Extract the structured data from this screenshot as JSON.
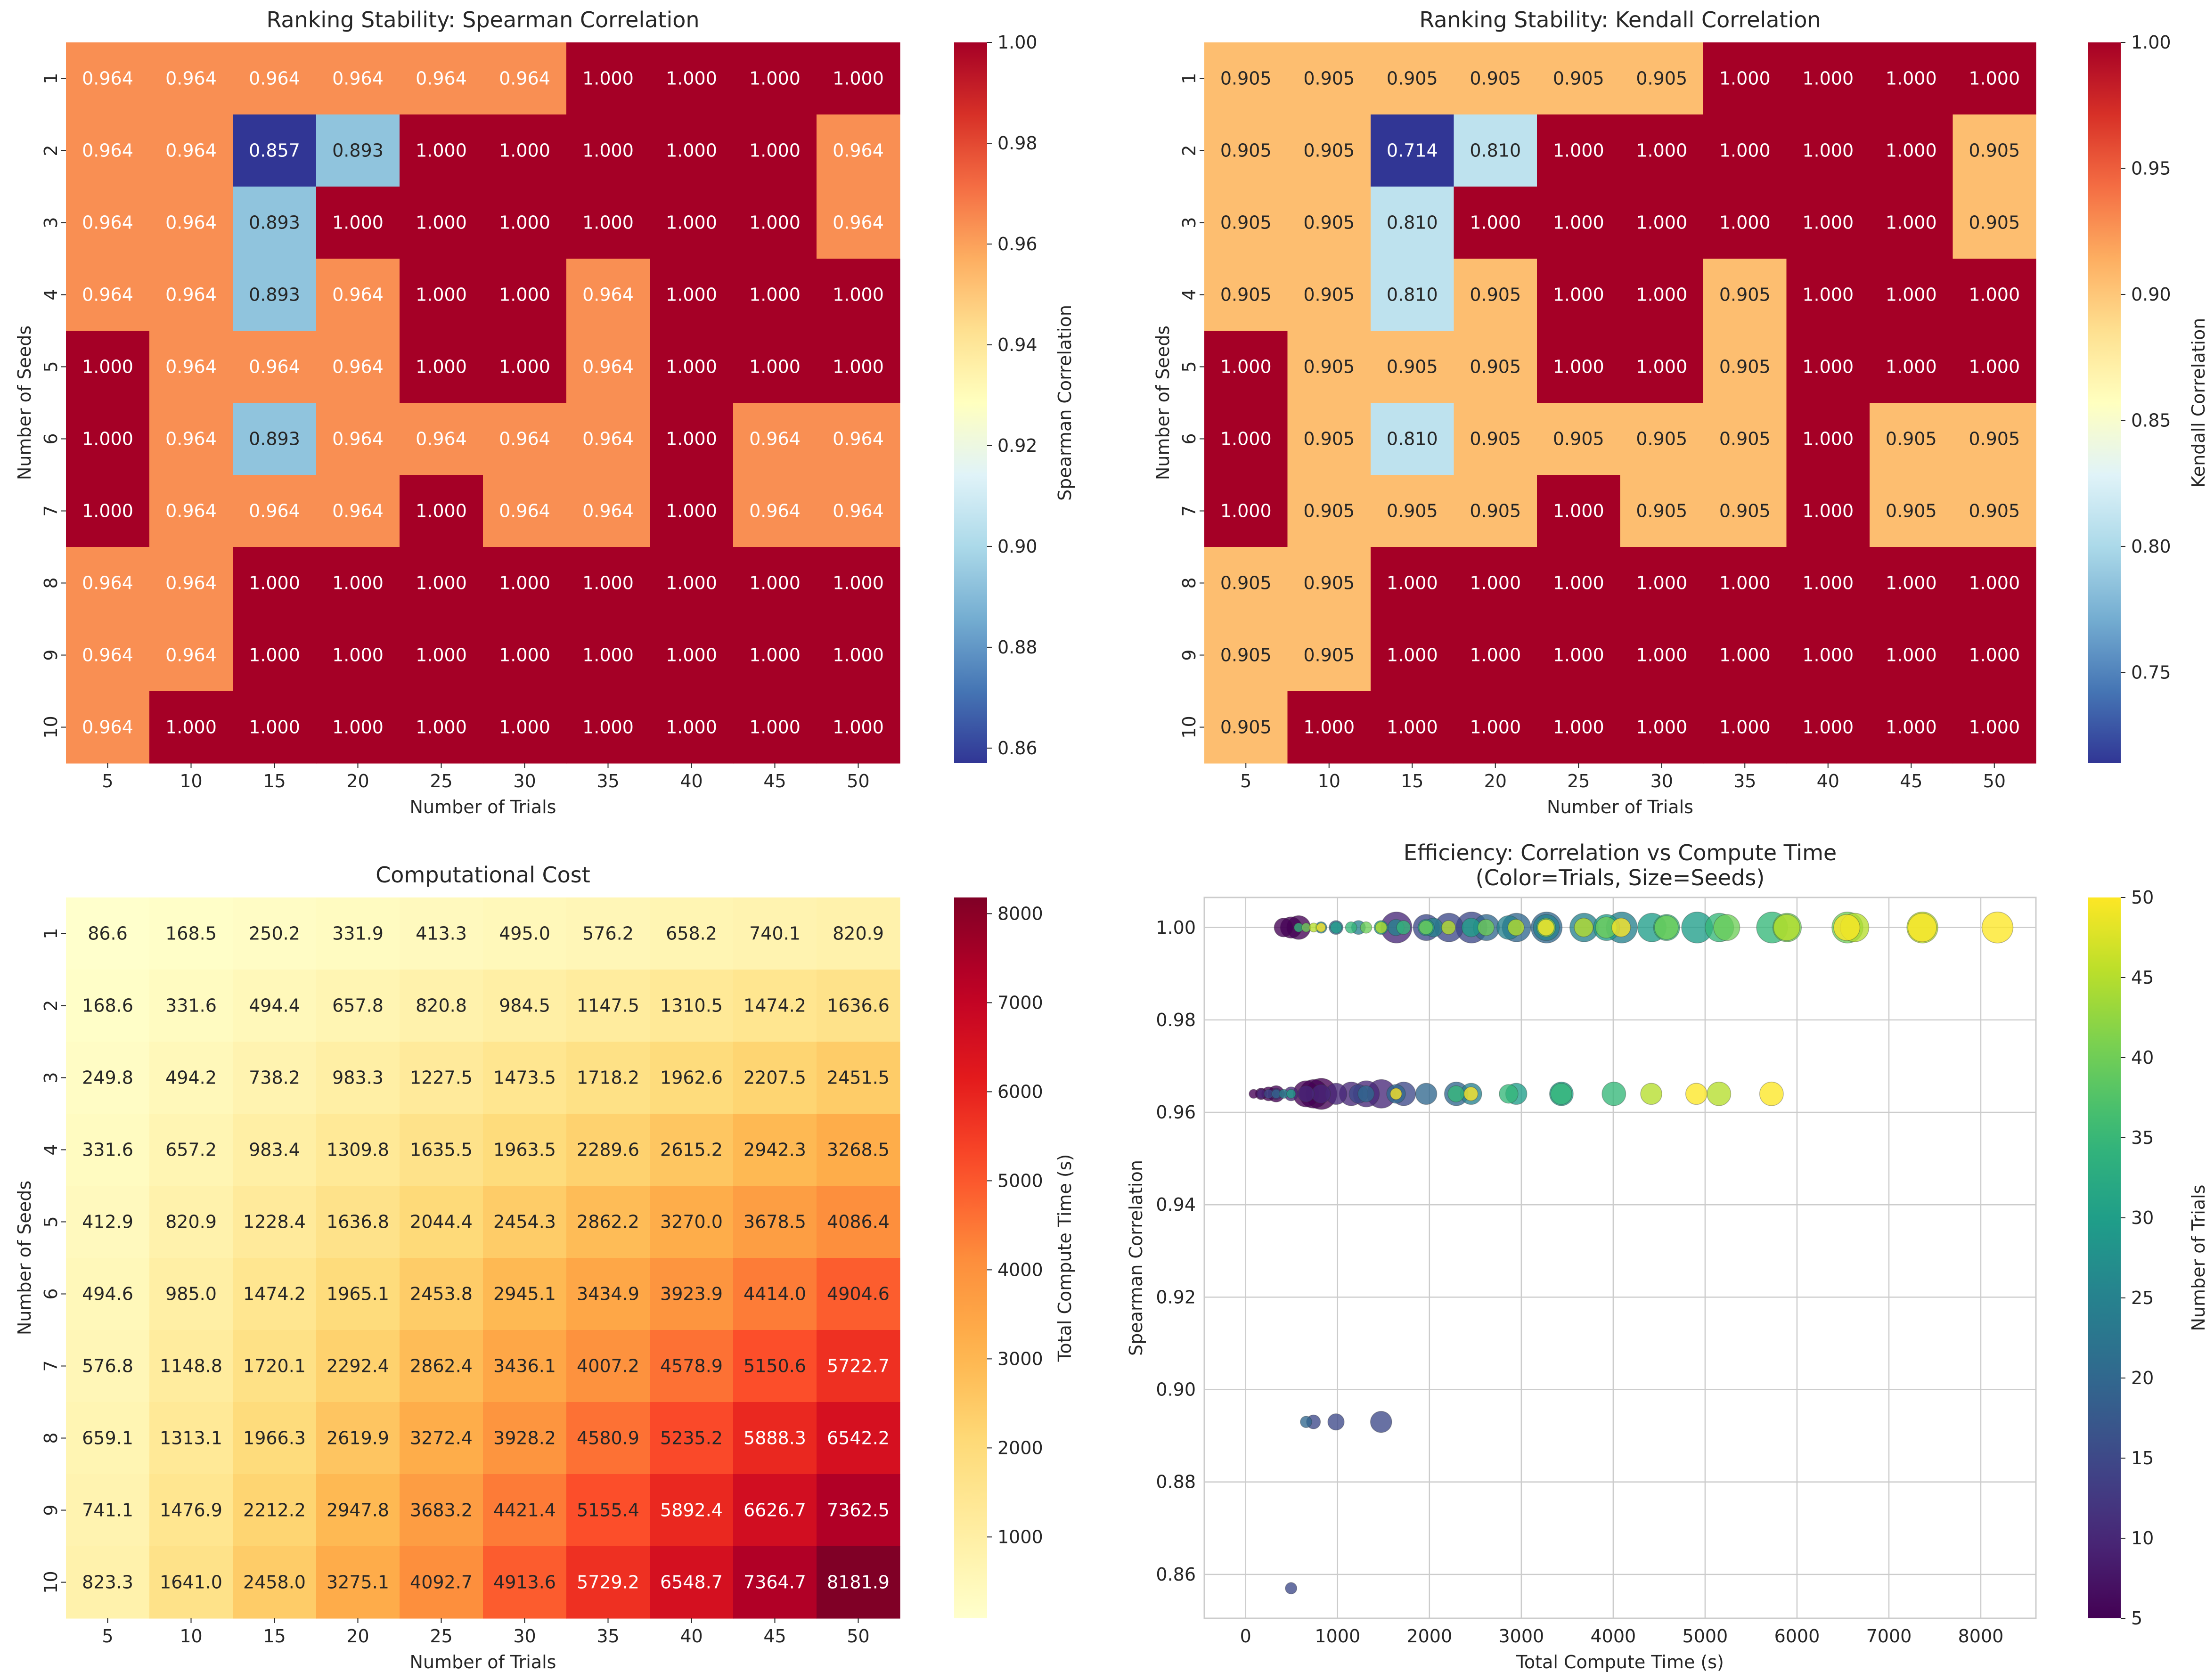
{
  "chart_data": [
    {
      "type": "heatmap",
      "title": "Ranking Stability: Spearman Correlation",
      "xlabel": "Number of Trials",
      "ylabel": "Number of Seeds",
      "colorbar_label": "Spearman Correlation",
      "colormap": "RdYlBu_r",
      "vmin": 0.857,
      "vmax": 1.0,
      "colorbar_ticks": [
        "0.86",
        "0.88",
        "0.90",
        "0.92",
        "0.94",
        "0.96",
        "0.98",
        "1.00"
      ],
      "x_categories": [
        "5",
        "10",
        "15",
        "20",
        "25",
        "30",
        "35",
        "40",
        "45",
        "50"
      ],
      "y_categories": [
        "1",
        "2",
        "3",
        "4",
        "5",
        "6",
        "7",
        "8",
        "9",
        "10"
      ],
      "values": [
        [
          "0.964",
          "0.964",
          "0.964",
          "0.964",
          "0.964",
          "0.964",
          "1.000",
          "1.000",
          "1.000",
          "1.000"
        ],
        [
          "0.964",
          "0.964",
          "0.857",
          "0.893",
          "1.000",
          "1.000",
          "1.000",
          "1.000",
          "1.000",
          "0.964"
        ],
        [
          "0.964",
          "0.964",
          "0.893",
          "1.000",
          "1.000",
          "1.000",
          "1.000",
          "1.000",
          "1.000",
          "0.964"
        ],
        [
          "0.964",
          "0.964",
          "0.893",
          "0.964",
          "1.000",
          "1.000",
          "0.964",
          "1.000",
          "1.000",
          "1.000"
        ],
        [
          "1.000",
          "0.964",
          "0.964",
          "0.964",
          "1.000",
          "1.000",
          "0.964",
          "1.000",
          "1.000",
          "1.000"
        ],
        [
          "1.000",
          "0.964",
          "0.893",
          "0.964",
          "0.964",
          "0.964",
          "0.964",
          "1.000",
          "0.964",
          "0.964"
        ],
        [
          "1.000",
          "0.964",
          "0.964",
          "0.964",
          "1.000",
          "0.964",
          "0.964",
          "1.000",
          "0.964",
          "0.964"
        ],
        [
          "0.964",
          "0.964",
          "1.000",
          "1.000",
          "1.000",
          "1.000",
          "1.000",
          "1.000",
          "1.000",
          "1.000"
        ],
        [
          "0.964",
          "0.964",
          "1.000",
          "1.000",
          "1.000",
          "1.000",
          "1.000",
          "1.000",
          "1.000",
          "1.000"
        ],
        [
          "0.964",
          "1.000",
          "1.000",
          "1.000",
          "1.000",
          "1.000",
          "1.000",
          "1.000",
          "1.000",
          "1.000"
        ]
      ]
    },
    {
      "type": "heatmap",
      "title": "Ranking Stability: Kendall Correlation",
      "xlabel": "Number of Trials",
      "ylabel": "Number of Seeds",
      "colorbar_label": "Kendall Correlation",
      "colormap": "RdYlBu_r",
      "vmin": 0.714,
      "vmax": 1.0,
      "colorbar_ticks": [
        "0.75",
        "0.80",
        "0.85",
        "0.90",
        "0.95",
        "1.00"
      ],
      "x_categories": [
        "5",
        "10",
        "15",
        "20",
        "25",
        "30",
        "35",
        "40",
        "45",
        "50"
      ],
      "y_categories": [
        "1",
        "2",
        "3",
        "4",
        "5",
        "6",
        "7",
        "8",
        "9",
        "10"
      ],
      "values": [
        [
          "0.905",
          "0.905",
          "0.905",
          "0.905",
          "0.905",
          "0.905",
          "1.000",
          "1.000",
          "1.000",
          "1.000"
        ],
        [
          "0.905",
          "0.905",
          "0.714",
          "0.810",
          "1.000",
          "1.000",
          "1.000",
          "1.000",
          "1.000",
          "0.905"
        ],
        [
          "0.905",
          "0.905",
          "0.810",
          "1.000",
          "1.000",
          "1.000",
          "1.000",
          "1.000",
          "1.000",
          "0.905"
        ],
        [
          "0.905",
          "0.905",
          "0.810",
          "0.905",
          "1.000",
          "1.000",
          "0.905",
          "1.000",
          "1.000",
          "1.000"
        ],
        [
          "1.000",
          "0.905",
          "0.905",
          "0.905",
          "1.000",
          "1.000",
          "0.905",
          "1.000",
          "1.000",
          "1.000"
        ],
        [
          "1.000",
          "0.905",
          "0.810",
          "0.905",
          "0.905",
          "0.905",
          "0.905",
          "1.000",
          "0.905",
          "0.905"
        ],
        [
          "1.000",
          "0.905",
          "0.905",
          "0.905",
          "1.000",
          "0.905",
          "0.905",
          "1.000",
          "0.905",
          "0.905"
        ],
        [
          "0.905",
          "0.905",
          "1.000",
          "1.000",
          "1.000",
          "1.000",
          "1.000",
          "1.000",
          "1.000",
          "1.000"
        ],
        [
          "0.905",
          "0.905",
          "1.000",
          "1.000",
          "1.000",
          "1.000",
          "1.000",
          "1.000",
          "1.000",
          "1.000"
        ],
        [
          "0.905",
          "1.000",
          "1.000",
          "1.000",
          "1.000",
          "1.000",
          "1.000",
          "1.000",
          "1.000",
          "1.000"
        ]
      ]
    },
    {
      "type": "heatmap",
      "title": "Computational Cost",
      "xlabel": "Number of Trials",
      "ylabel": "Number of Seeds",
      "colorbar_label": "Total Compute Time (s)",
      "colormap": "YlOrRd",
      "vmin": 86.6,
      "vmax": 8181.9,
      "colorbar_ticks": [
        "1000",
        "2000",
        "3000",
        "4000",
        "5000",
        "6000",
        "7000",
        "8000"
      ],
      "x_categories": [
        "5",
        "10",
        "15",
        "20",
        "25",
        "30",
        "35",
        "40",
        "45",
        "50"
      ],
      "y_categories": [
        "1",
        "2",
        "3",
        "4",
        "5",
        "6",
        "7",
        "8",
        "9",
        "10"
      ],
      "values": [
        [
          "86.6",
          "168.5",
          "250.2",
          "331.9",
          "413.3",
          "495.0",
          "576.2",
          "658.2",
          "740.1",
          "820.9"
        ],
        [
          "168.6",
          "331.6",
          "494.4",
          "657.8",
          "820.8",
          "984.5",
          "1147.5",
          "1310.5",
          "1474.2",
          "1636.6"
        ],
        [
          "249.8",
          "494.2",
          "738.2",
          "983.3",
          "1227.5",
          "1473.5",
          "1718.2",
          "1962.6",
          "2207.5",
          "2451.5"
        ],
        [
          "331.6",
          "657.2",
          "983.4",
          "1309.8",
          "1635.5",
          "1963.5",
          "2289.6",
          "2615.2",
          "2942.3",
          "3268.5"
        ],
        [
          "412.9",
          "820.9",
          "1228.4",
          "1636.8",
          "2044.4",
          "2454.3",
          "2862.2",
          "3270.0",
          "3678.5",
          "4086.4"
        ],
        [
          "494.6",
          "985.0",
          "1474.2",
          "1965.1",
          "2453.8",
          "2945.1",
          "3434.9",
          "3923.9",
          "4414.0",
          "4904.6"
        ],
        [
          "576.8",
          "1148.8",
          "1720.1",
          "2292.4",
          "2862.4",
          "3436.1",
          "4007.2",
          "4578.9",
          "5150.6",
          "5722.7"
        ],
        [
          "659.1",
          "1313.1",
          "1966.3",
          "2619.9",
          "3272.4",
          "3928.2",
          "4580.9",
          "5235.2",
          "5888.3",
          "6542.2"
        ],
        [
          "741.1",
          "1476.9",
          "2212.2",
          "2947.8",
          "3683.2",
          "4421.4",
          "5155.4",
          "5892.4",
          "6626.7",
          "7362.5"
        ],
        [
          "823.3",
          "1641.0",
          "2458.0",
          "3275.1",
          "4092.7",
          "4913.6",
          "5729.2",
          "6548.7",
          "7364.7",
          "8181.9"
        ]
      ]
    },
    {
      "type": "scatter",
      "title": "Efficiency: Correlation vs Compute Time",
      "subtitle": "(Color=Trials, Size=Seeds)",
      "xlabel": "Total Compute Time (s)",
      "ylabel": "Spearman Correlation",
      "colorbar_label": "Number of Trials",
      "colormap": "viridis",
      "color_range": [
        5,
        50
      ],
      "colorbar_ticks": [
        "5",
        "10",
        "15",
        "20",
        "25",
        "30",
        "35",
        "40",
        "45",
        "50"
      ],
      "xlim": [
        -450,
        8600
      ],
      "ylim": [
        0.8505,
        1.0065
      ],
      "xticks": [
        "0",
        "1000",
        "2000",
        "3000",
        "4000",
        "5000",
        "6000",
        "7000",
        "8000"
      ],
      "yticks": [
        "0.86",
        "0.88",
        "0.90",
        "0.92",
        "0.94",
        "0.96",
        "0.98",
        "1.00"
      ],
      "grid": true,
      "note": "one point per (seeds, trials) cell: x = compute time, y = Spearman correlation, color = trials, size = seeds"
    }
  ]
}
